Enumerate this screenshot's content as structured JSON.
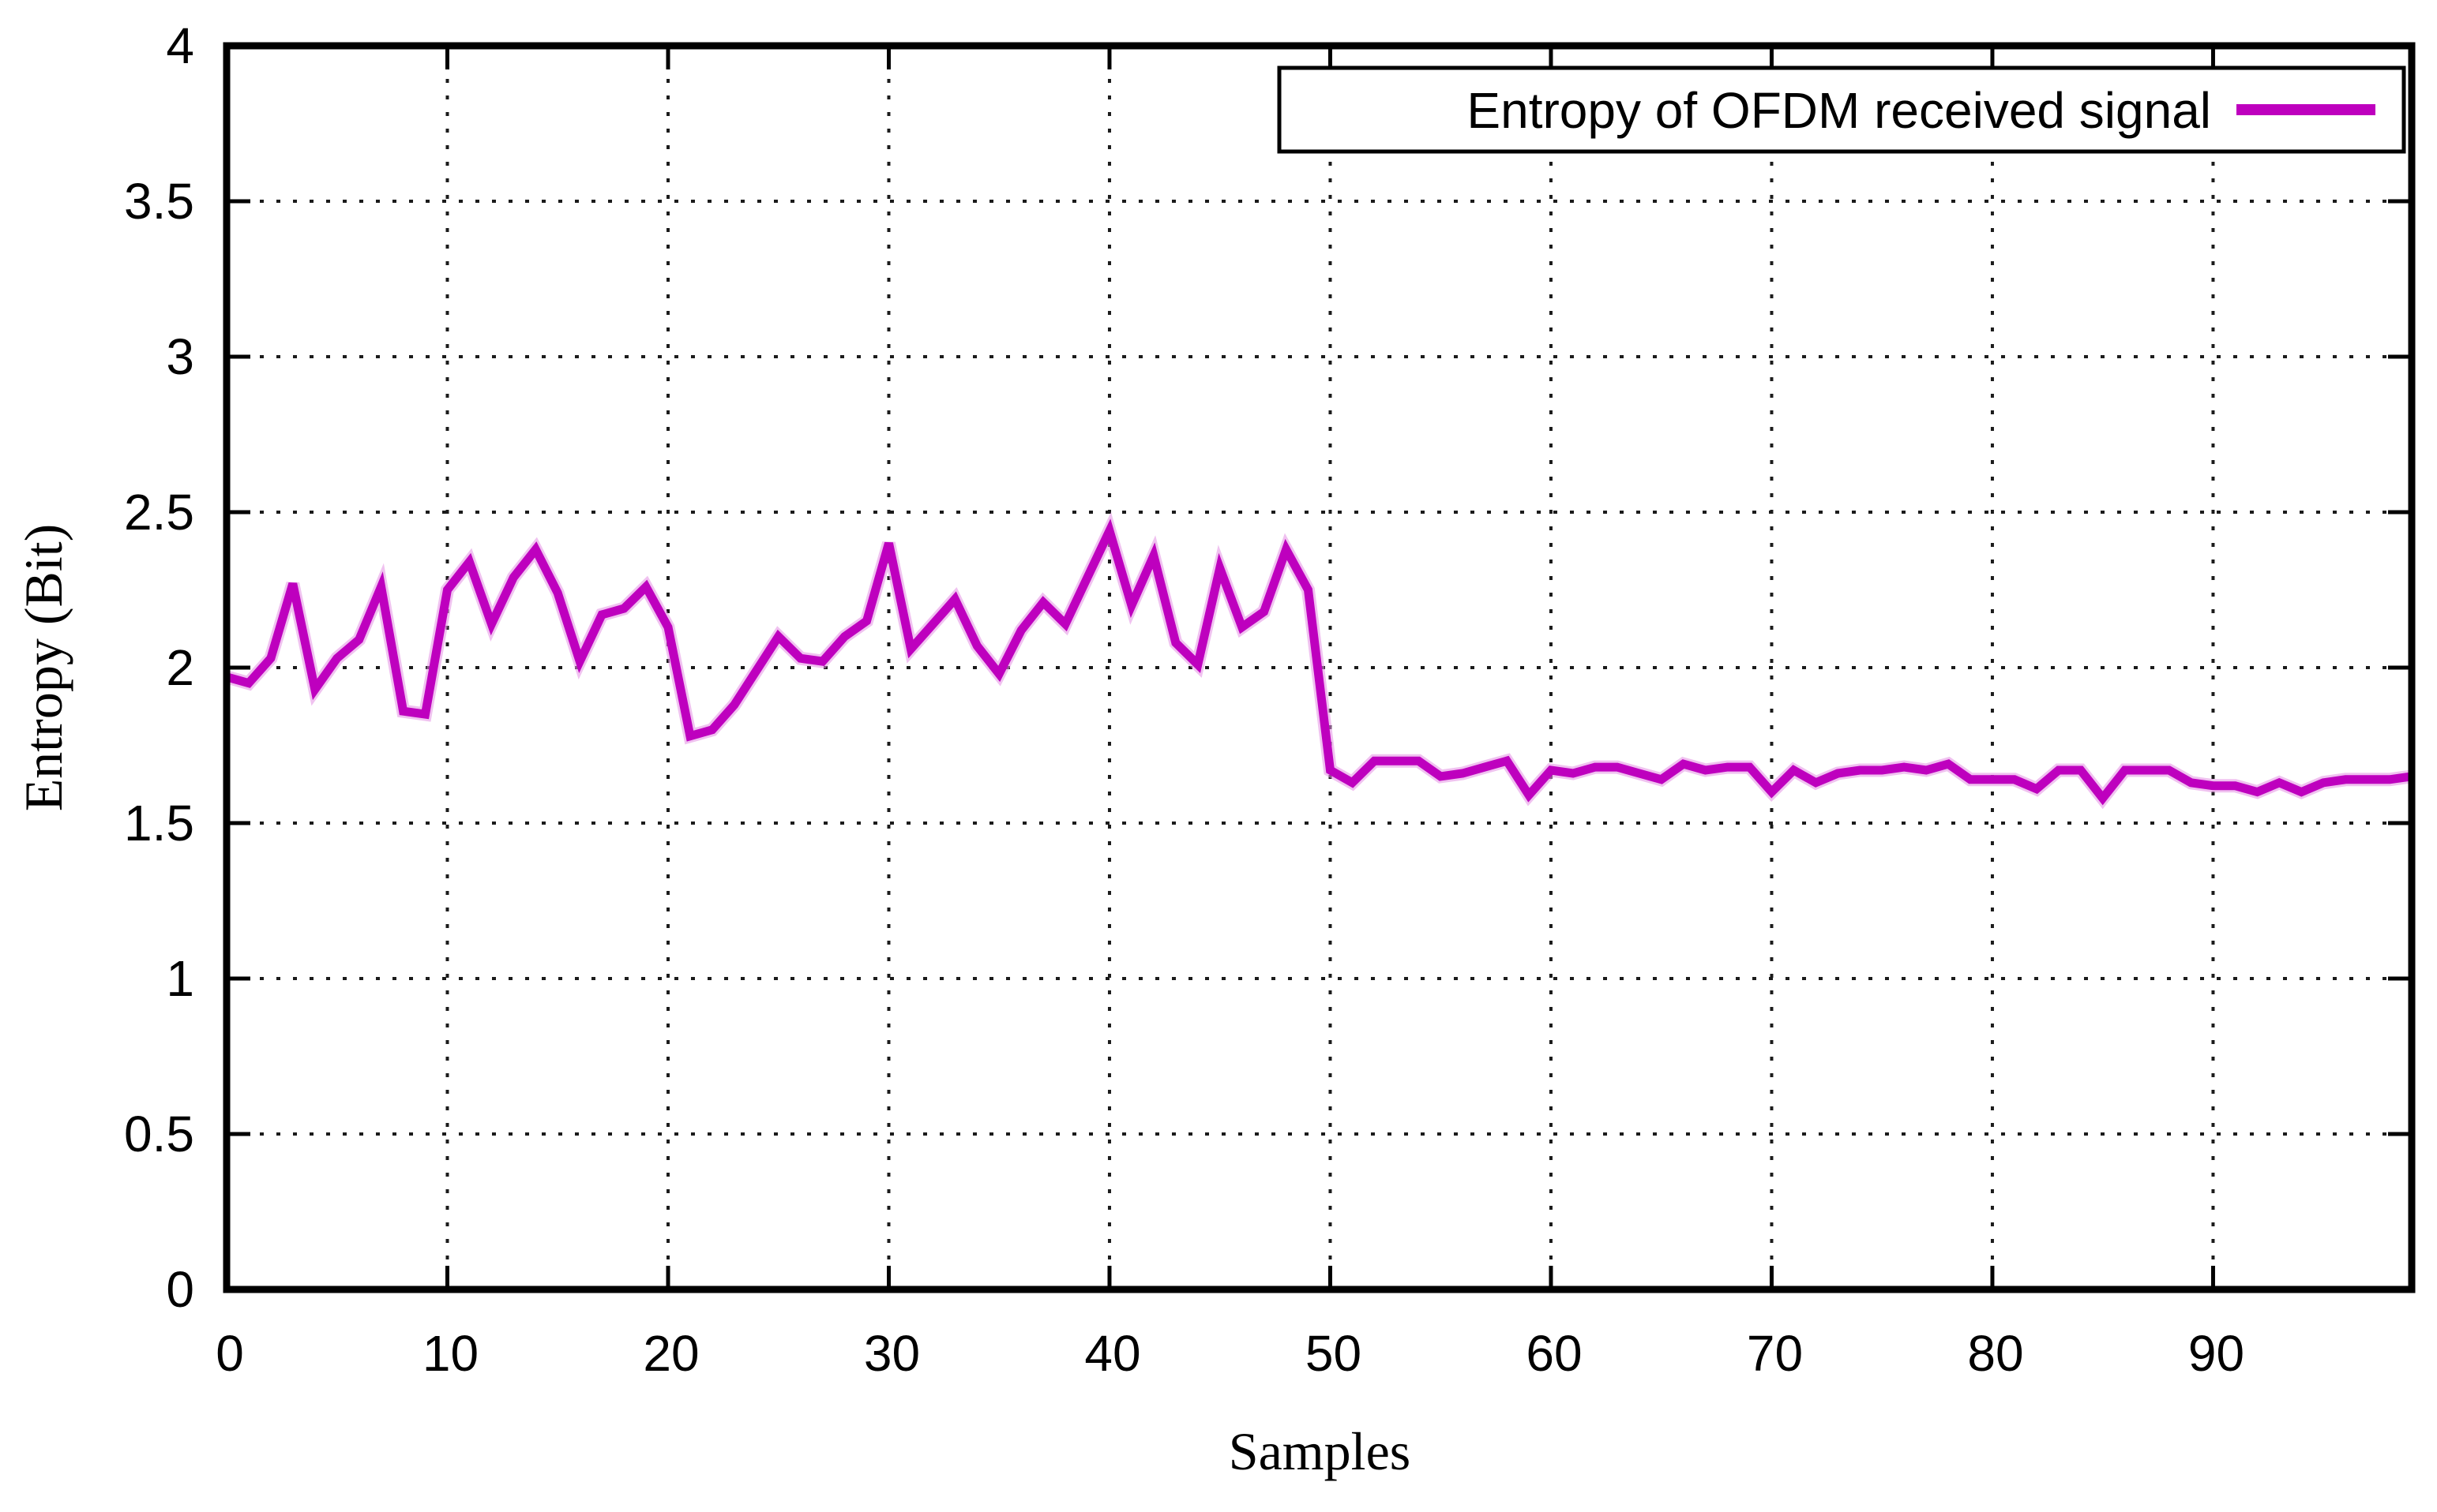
{
  "style": {
    "background": "#FFFFFF",
    "border_color": "#000000",
    "grid_color": "#1B1B1B",
    "text_color": "#000000",
    "line_color": "#BE00BE",
    "line_halo_color": "#E38FE3"
  },
  "legend": {
    "label": "Entropy of OFDM received signal"
  },
  "chart_data": {
    "type": "line",
    "title": "",
    "xlabel": "Samples",
    "ylabel": "Entropy (Bit)",
    "xlim": [
      0,
      99
    ],
    "ylim": [
      0,
      4
    ],
    "grid": "dotted",
    "legend_position": "top-right-inset",
    "x_ticks": [
      0,
      10,
      20,
      30,
      40,
      50,
      60,
      70,
      80,
      90
    ],
    "x_tick_labels": [
      "0",
      "10",
      "20",
      "30",
      "40",
      "50",
      "60",
      "70",
      "80",
      "90"
    ],
    "y_ticks": [
      0,
      0.5,
      1,
      1.5,
      2,
      2.5,
      3,
      3.5,
      4
    ],
    "y_tick_labels": [
      "0",
      "0.5",
      "1",
      "1.5",
      "2",
      "2.5",
      "3",
      "3.5",
      "4"
    ],
    "series": [
      {
        "name": "Entropy of OFDM received signal",
        "color": "#BE00BE",
        "x_is_index": true,
        "values": [
          1.97,
          1.95,
          2.03,
          2.27,
          1.93,
          2.03,
          2.09,
          2.26,
          1.86,
          1.85,
          2.25,
          2.34,
          2.14,
          2.29,
          2.38,
          2.24,
          2.02,
          2.17,
          2.19,
          2.26,
          2.13,
          1.78,
          1.8,
          1.88,
          1.99,
          2.1,
          2.03,
          2.02,
          2.1,
          2.15,
          2.4,
          2.06,
          2.14,
          2.22,
          2.07,
          1.98,
          2.12,
          2.21,
          2.14,
          2.29,
          2.44,
          2.2,
          2.36,
          2.08,
          2.01,
          2.32,
          2.13,
          2.18,
          2.38,
          2.25,
          1.67,
          1.63,
          1.7,
          1.7,
          1.7,
          1.65,
          1.66,
          1.68,
          1.7,
          1.59,
          1.67,
          1.66,
          1.68,
          1.68,
          1.66,
          1.64,
          1.69,
          1.67,
          1.68,
          1.68,
          1.6,
          1.67,
          1.63,
          1.66,
          1.67,
          1.67,
          1.68,
          1.67,
          1.69,
          1.64,
          1.64,
          1.64,
          1.61,
          1.67,
          1.67,
          1.58,
          1.67,
          1.67,
          1.67,
          1.63,
          1.62,
          1.62,
          1.6,
          1.63,
          1.6,
          1.63,
          1.64,
          1.64,
          1.64,
          1.65
        ]
      }
    ]
  }
}
